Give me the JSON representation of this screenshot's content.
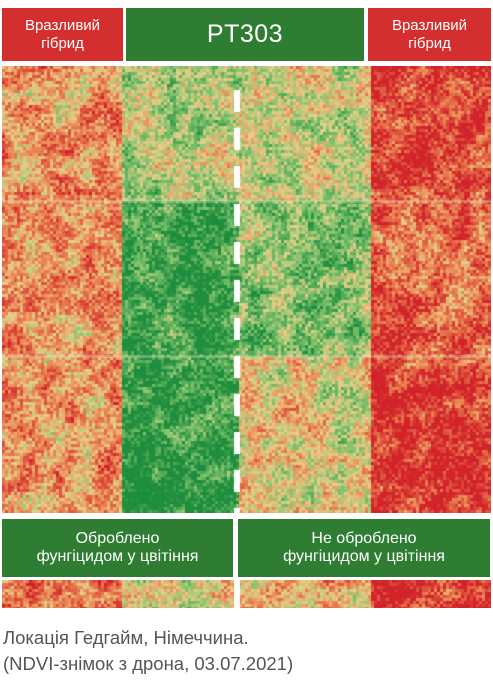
{
  "labels": {
    "left_hybrid": [
      "Вразливий",
      "гібрид"
    ],
    "variety": "PT303",
    "right_hybrid": [
      "Вразливий",
      "гібрид"
    ],
    "treated": [
      "Оброблено",
      "фунгіцидом у цвітіння"
    ],
    "untreated": [
      "Не оброблено",
      "фунгіцидом у цвітіння"
    ]
  },
  "caption": [
    "Локація Гедгайм, Німеччина.",
    "(NDVI-знімок з дрона, 03.07.2021)"
  ],
  "colors": {
    "label_red": "#d32f2f",
    "label_green": "#2e7d32",
    "ndvi_red": "#d2232a",
    "ndvi_orange": "#ec8a55",
    "ndvi_yellow": "#e6d08a",
    "ndvi_lightgreen": "#7cc16b",
    "ndvi_green": "#1e8e3e",
    "caption_text": "#555555"
  }
}
